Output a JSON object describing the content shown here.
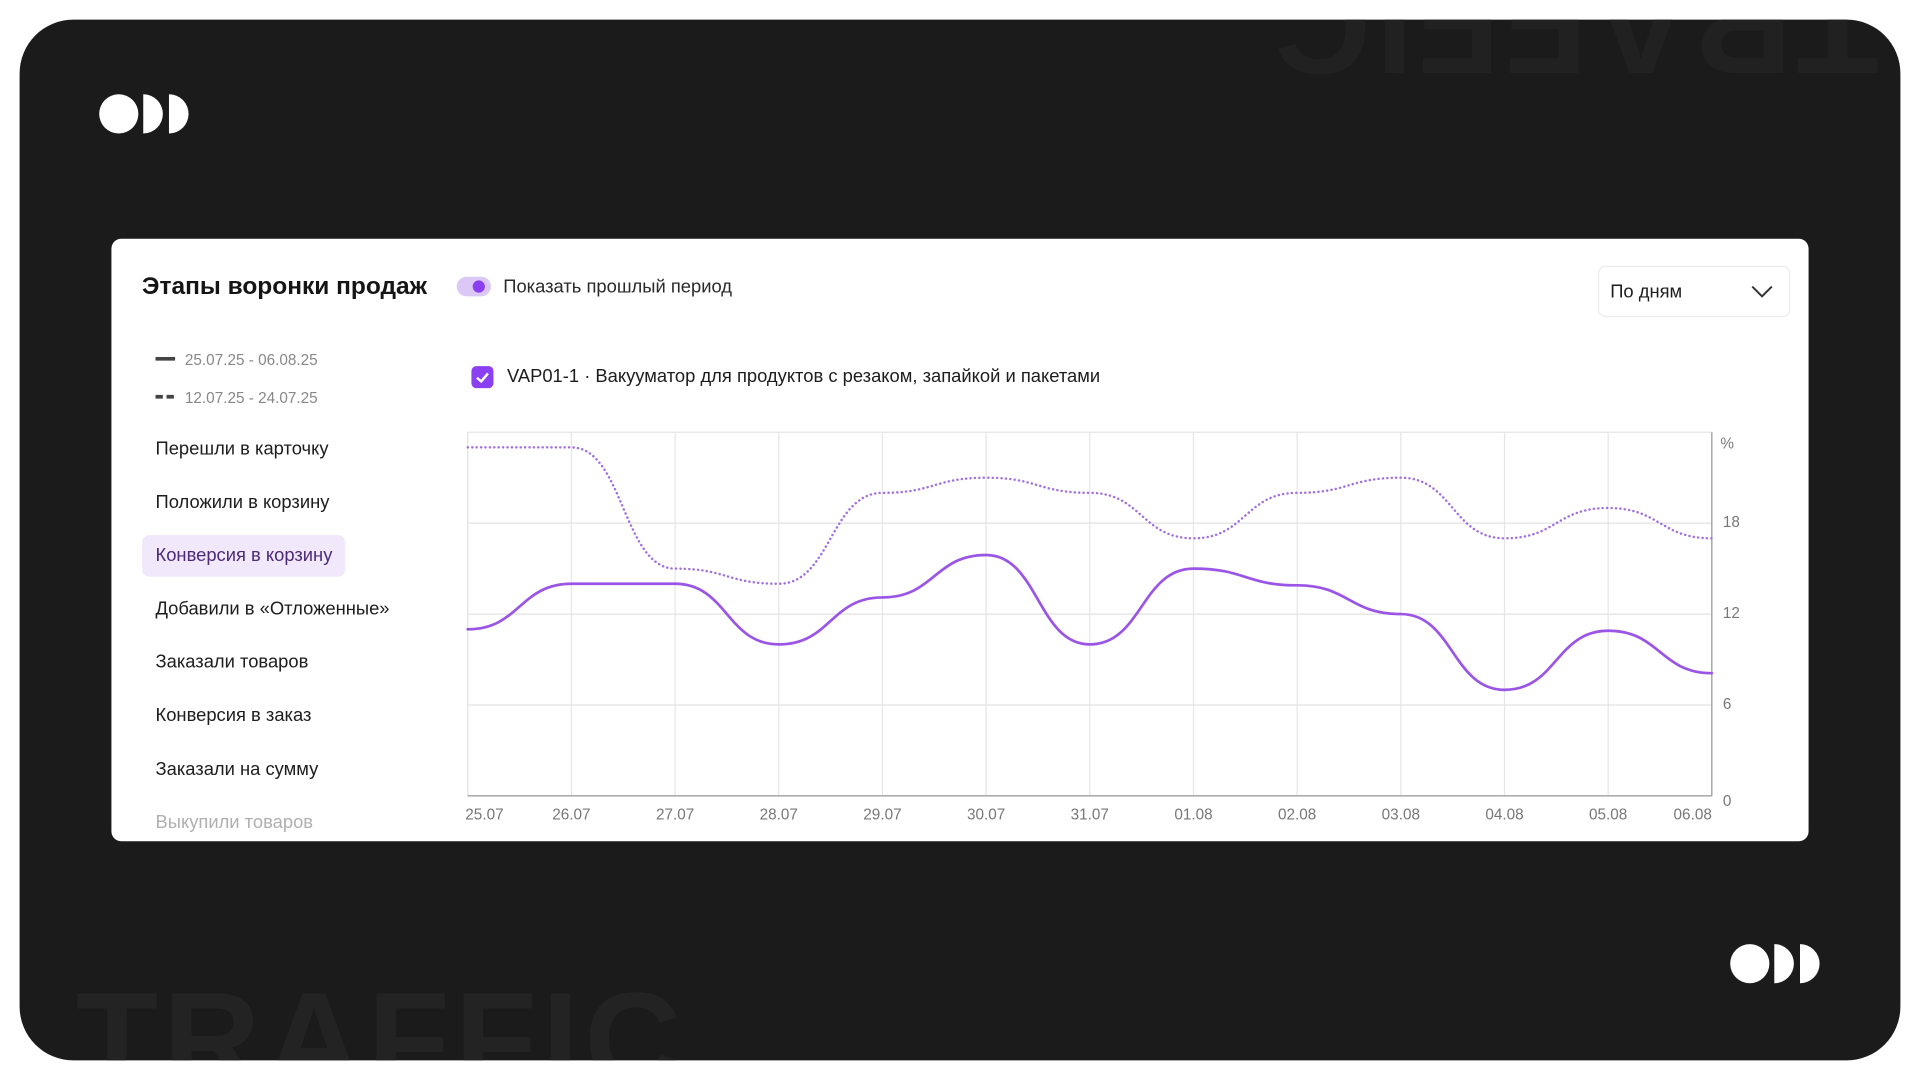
{
  "watermark": "TRAFFIC",
  "header": {
    "title": "Этапы воронки продаж"
  },
  "toggle": {
    "label": "Показать прошлый период",
    "on": true
  },
  "dropdown": {
    "value": "По дням"
  },
  "menu": {
    "items": [
      "Перешли в карточку",
      "Положили в корзину",
      "Конверсия в корзину",
      "Добавили в «Отложенные»",
      "Заказали товаров",
      "Конверсия в заказ",
      "Заказали на сумму",
      "Выкупили товаров"
    ],
    "active": 2
  },
  "product": {
    "label": "VAP01-1 · Вакууматор для продуктов с резаком, запайкой и пакетами",
    "checked": true
  },
  "chart_data": {
    "type": "line",
    "y_label": "%",
    "categories": [
      "25.07",
      "26.07",
      "27.07",
      "28.07",
      "29.07",
      "30.07",
      "31.07",
      "01.08",
      "02.08",
      "03.08",
      "04.08",
      "05.08",
      "06.08"
    ],
    "series": [
      {
        "name": "25.07.25 - 06.08.25",
        "color": "#9a55e6",
        "dash": "solid",
        "values": [
          11,
          14,
          14,
          10,
          13.1,
          15.9,
          10,
          15,
          13.9,
          12,
          7,
          10.9,
          8.1
        ]
      },
      {
        "name": "12.07.25 - 24.07.25",
        "color": "#a06fe3",
        "dash": "dotted",
        "values": [
          23,
          23,
          15,
          14,
          20,
          21,
          20,
          17,
          20,
          21,
          17,
          19,
          17
        ]
      }
    ],
    "ylim": [
      0,
      24
    ],
    "yticks": [
      0,
      6,
      12,
      18
    ],
    "grid": true
  }
}
